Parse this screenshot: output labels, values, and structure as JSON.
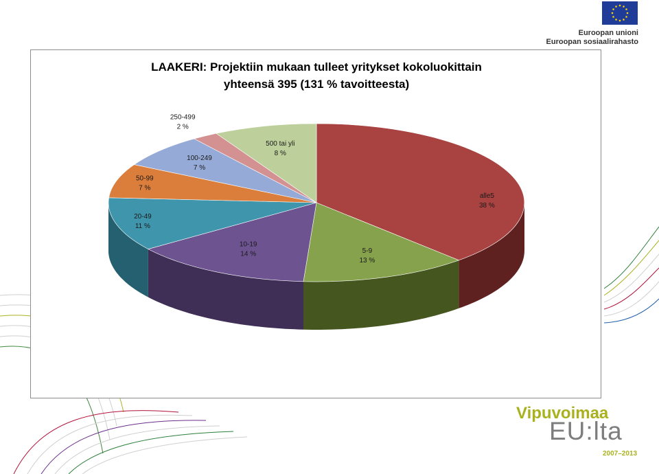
{
  "header": {
    "logo_line1": "Euroopan unioni",
    "logo_line2": "Euroopan sosiaalirahasto"
  },
  "footer_logo": {
    "line1": "Vipuvoimaa",
    "line2": "EU:lta",
    "years": "2007–2013"
  },
  "chart_data": {
    "type": "pie",
    "title": "LAAKERI: Projektiin mukaan tulleet yritykset kokoluokittain",
    "subtitle": "yhteensä 395 (131 % tavoitteesta)",
    "slices": [
      {
        "label": "alle5",
        "percent_label": "38 %",
        "value": 38,
        "color": "#a84341",
        "side": "#5f2120"
      },
      {
        "label": "5-9",
        "percent_label": "13 %",
        "value": 13,
        "color": "#86a24c",
        "side": "#46561f"
      },
      {
        "label": "10-19",
        "percent_label": "14 %",
        "value": 14,
        "color": "#6d5390",
        "side": "#3f2f57"
      },
      {
        "label": "20-49",
        "percent_label": "11 %",
        "value": 11,
        "color": "#3f96ac",
        "side": "#24606f"
      },
      {
        "label": "50-99",
        "percent_label": "7 %",
        "value": 7,
        "color": "#db7e3c",
        "side": "#8a4a1c"
      },
      {
        "label": "100-249",
        "percent_label": "7 %",
        "value": 7,
        "color": "#95aad6",
        "side": "#5d6f93"
      },
      {
        "label": "250-499",
        "percent_label": "2 %",
        "value": 2,
        "color": "#d49191",
        "side": "#8d5757"
      },
      {
        "label": "500 tai yli",
        "percent_label": "8 %",
        "value": 8,
        "color": "#bdd09b",
        "side": "#7d8c5f"
      }
    ]
  }
}
